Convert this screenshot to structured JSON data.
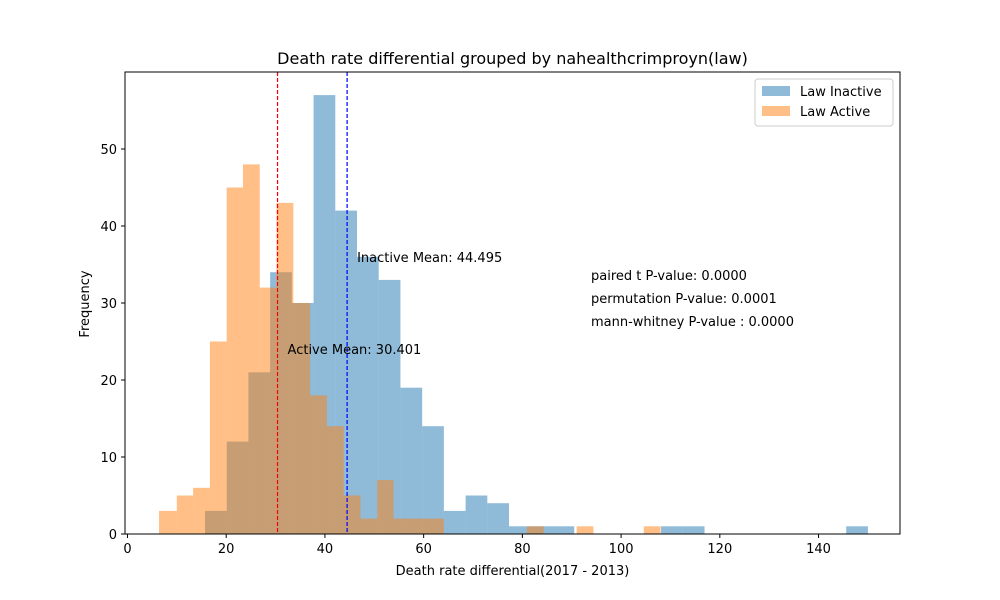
{
  "chart_data": {
    "type": "histogram",
    "title": "Death rate differential grouped by nahealthcrimproyn(law)",
    "xlabel": "Death rate differential(2017 - 2013)",
    "ylabel": "Frequency",
    "xlim": [
      -0.5,
      156.5
    ],
    "ylim": [
      0,
      60
    ],
    "xticks": [
      0,
      20,
      40,
      60,
      80,
      100,
      120,
      140
    ],
    "yticks": [
      0,
      10,
      20,
      30,
      40,
      50
    ],
    "grid": false,
    "legend_position": "top-right",
    "series": [
      {
        "name": "Law Inactive",
        "color": "#1f77b4",
        "opacity": 0.5,
        "bins": [
          [
            15.7,
            20.1,
            3
          ],
          [
            20.1,
            24.5,
            12
          ],
          [
            24.5,
            28.9,
            21
          ],
          [
            28.9,
            33.3,
            34
          ],
          [
            33.3,
            37.7,
            30
          ],
          [
            37.7,
            42.1,
            57
          ],
          [
            42.1,
            46.5,
            42
          ],
          [
            46.5,
            50.9,
            36
          ],
          [
            50.9,
            55.3,
            33
          ],
          [
            55.3,
            59.7,
            19
          ],
          [
            59.7,
            64.1,
            14
          ],
          [
            64.1,
            68.5,
            3
          ],
          [
            68.5,
            72.9,
            5
          ],
          [
            72.9,
            77.3,
            4
          ],
          [
            77.3,
            81.7,
            1
          ],
          [
            81.7,
            86.1,
            1
          ],
          [
            86.1,
            90.5,
            1
          ],
          [
            108.1,
            112.5,
            1
          ],
          [
            112.5,
            116.9,
            1
          ],
          [
            145.6,
            150.0,
            1
          ]
        ]
      },
      {
        "name": "Law Active",
        "color": "#ff7f0e",
        "opacity": 0.5,
        "bins": [
          [
            6.4,
            10.0,
            3
          ],
          [
            10.0,
            13.3,
            5
          ],
          [
            13.3,
            16.7,
            6
          ],
          [
            16.7,
            20.1,
            25
          ],
          [
            20.1,
            23.4,
            45
          ],
          [
            23.4,
            26.8,
            48
          ],
          [
            26.8,
            30.2,
            32
          ],
          [
            30.2,
            33.6,
            43
          ],
          [
            33.6,
            37.0,
            30
          ],
          [
            37.0,
            40.4,
            18
          ],
          [
            40.4,
            43.8,
            14
          ],
          [
            43.8,
            47.2,
            5
          ],
          [
            47.2,
            50.6,
            2
          ],
          [
            50.6,
            53.9,
            7
          ],
          [
            53.9,
            57.3,
            2
          ],
          [
            57.3,
            64.1,
            2
          ],
          [
            80.9,
            84.3,
            1
          ],
          [
            91.0,
            94.4,
            1
          ],
          [
            104.6,
            108.0,
            1
          ]
        ]
      }
    ],
    "mean_lines": [
      {
        "label": "Inactive Mean: 44.495",
        "value": 44.495,
        "color": "#0000ff",
        "text_color": "#00008b",
        "label_y": 36
      },
      {
        "label": "Active Mean: 30.401",
        "value": 30.401,
        "color": "#ff0000",
        "text_color": "#ff0000",
        "label_y": 24
      }
    ],
    "annotations": [
      "paired t P-value: 0.0000",
      "permutation P-value: 0.0001",
      "mann-whitney P-value : 0.0000"
    ]
  }
}
